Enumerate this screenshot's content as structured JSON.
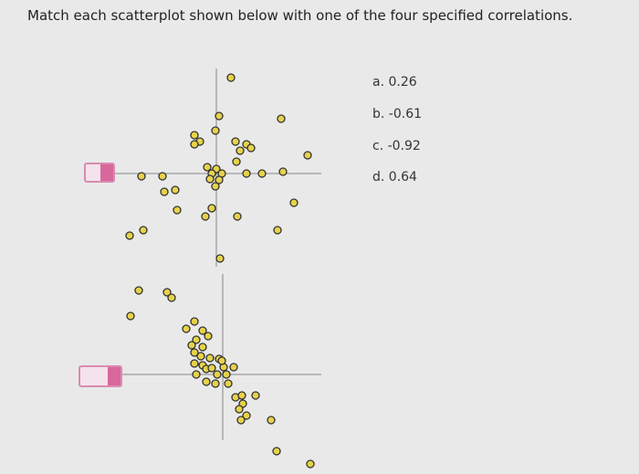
{
  "question": "Match each scatterplot shown below with one of the four specified correlations.",
  "options": [
    "a. 0.26",
    "b. -0.61",
    "c. -0.92",
    "d. 0.64"
  ]
}
